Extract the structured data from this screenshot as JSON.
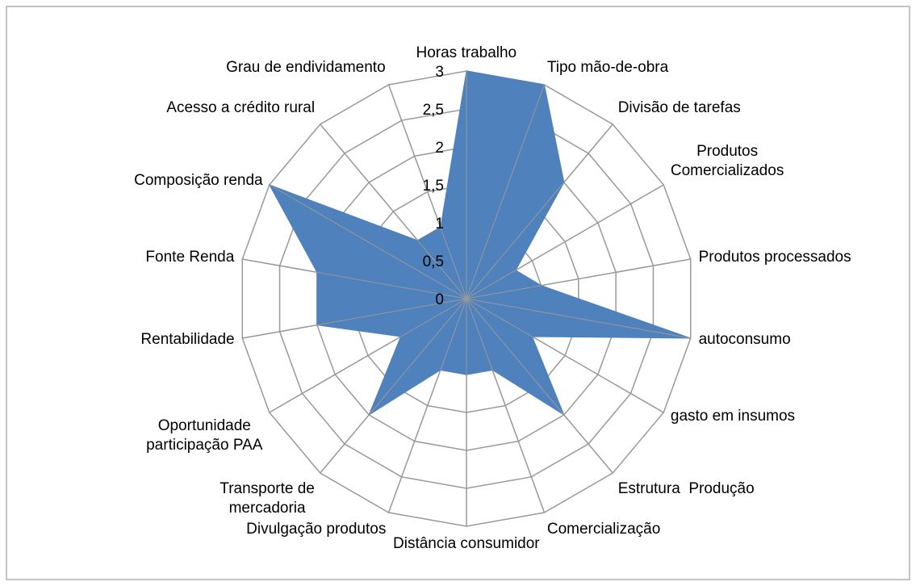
{
  "chart_data": {
    "type": "radar",
    "categories": [
      "Horas trabalho",
      "Tipo mão-de-obra",
      "Divisão de tarefas",
      "Produtos\nComercializados",
      "Produtos processados",
      "autoconsumo",
      "gasto em insumos",
      "Estrutura  Produção",
      "Comercialização",
      "Distância consumidor",
      "Divulgação produtos",
      "Transporte de\nmercadoria",
      "Oportunidade\nparticipação PAA",
      "Rentabilidade",
      "Fonte Renda",
      "Composição renda",
      "Acesso a crédito rural",
      "Grau de endividamento"
    ],
    "values": [
      3,
      3,
      2,
      0.75,
      1,
      3,
      1,
      2,
      1,
      1,
      1,
      2,
      1,
      2,
      2,
      3,
      1,
      1
    ],
    "color": "#4f81bd",
    "ylim": [
      0,
      3
    ],
    "yticks": [
      0,
      {
        "value": 0.5,
        "label": "0,5"
      },
      1,
      {
        "value": 1.5,
        "label": "1,5"
      },
      2,
      {
        "value": 2.5,
        "label": "2,5"
      },
      3
    ],
    "grid": true
  }
}
